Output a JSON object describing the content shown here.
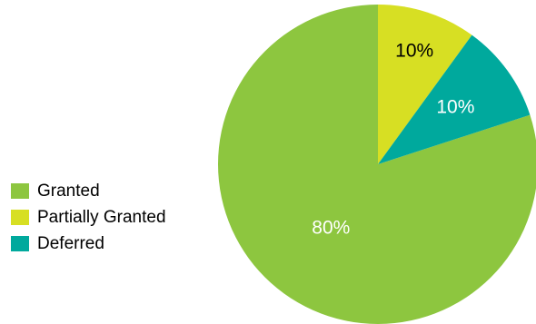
{
  "chart_data": {
    "type": "pie",
    "title": "",
    "categories": [
      "Granted",
      "Partially Granted",
      "Deferred"
    ],
    "values": [
      80,
      10,
      10
    ],
    "value_labels": [
      "80%",
      "10%",
      "10%"
    ],
    "colors": [
      "#8dc63f",
      "#d7df23",
      "#00a99d"
    ],
    "label_colors": [
      "#ffffff",
      "#000000",
      "#ffffff"
    ],
    "legend_position": "left",
    "start_angle_deg": 72,
    "direction": "clockwise"
  }
}
